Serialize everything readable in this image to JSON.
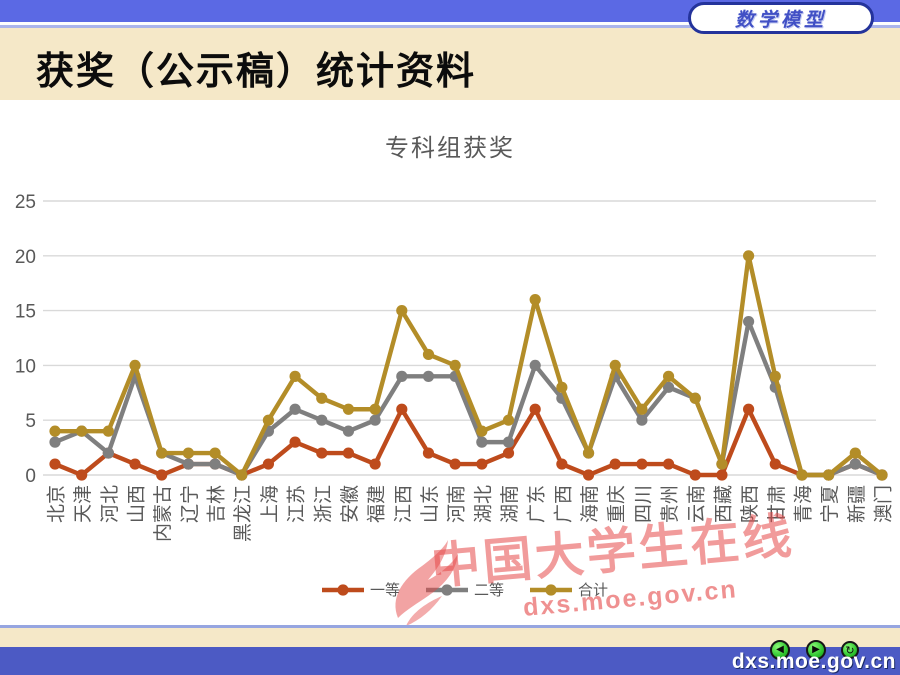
{
  "header": {
    "logo_text": "数学模型"
  },
  "slide": {
    "title": "获奖（公示稿）统计资料"
  },
  "chart_data": {
    "type": "line",
    "title": "专科组获奖",
    "categories": [
      "北京",
      "天津",
      "河北",
      "山西",
      "内蒙古",
      "辽宁",
      "吉林",
      "黑龙江",
      "上海",
      "江苏",
      "浙江",
      "安徽",
      "福建",
      "江西",
      "山东",
      "河南",
      "湖北",
      "湖南",
      "广东",
      "广西",
      "海南",
      "重庆",
      "四川",
      "贵州",
      "云南",
      "西藏",
      "陕西",
      "甘肃",
      "青海",
      "宁夏",
      "新疆",
      "澳门"
    ],
    "series": [
      {
        "name": "一等",
        "color": "#BE4B1C",
        "values": [
          1,
          0,
          2,
          1,
          0,
          1,
          1,
          0,
          1,
          3,
          2,
          2,
          1,
          6,
          2,
          1,
          1,
          2,
          6,
          1,
          0,
          1,
          1,
          1,
          0,
          0,
          6,
          1,
          0,
          0,
          1,
          0
        ]
      },
      {
        "name": "二等",
        "color": "#7F7F7F",
        "values": [
          3,
          4,
          2,
          9,
          2,
          1,
          1,
          0,
          4,
          6,
          5,
          4,
          5,
          9,
          9,
          9,
          3,
          3,
          10,
          7,
          2,
          9,
          5,
          8,
          7,
          1,
          14,
          8,
          0,
          0,
          1,
          0
        ]
      },
      {
        "name": "合计",
        "color": "#B38D28",
        "values": [
          4,
          4,
          4,
          10,
          2,
          2,
          2,
          0,
          5,
          9,
          7,
          6,
          6,
          15,
          11,
          10,
          4,
          5,
          16,
          8,
          2,
          10,
          6,
          9,
          7,
          1,
          20,
          9,
          0,
          0,
          2,
          0
        ]
      }
    ],
    "ylim": [
      0,
      25
    ],
    "yticks": [
      0,
      5,
      10,
      15,
      20,
      25
    ],
    "xlabel": "",
    "ylabel": "",
    "grid": true,
    "legend_position": "bottom",
    "tick_color": "#595959",
    "grid_color": "#D9D9D9"
  },
  "watermark": {
    "text": "中国大学生在线",
    "subtext": "dxs.moe.gov.cn"
  },
  "footer": {
    "url": "dxs.moe.gov.cn",
    "buttons": [
      {
        "name": "back",
        "glyph": "◀"
      },
      {
        "name": "forward",
        "glyph": "▶"
      },
      {
        "name": "return",
        "glyph": "↻"
      }
    ]
  }
}
